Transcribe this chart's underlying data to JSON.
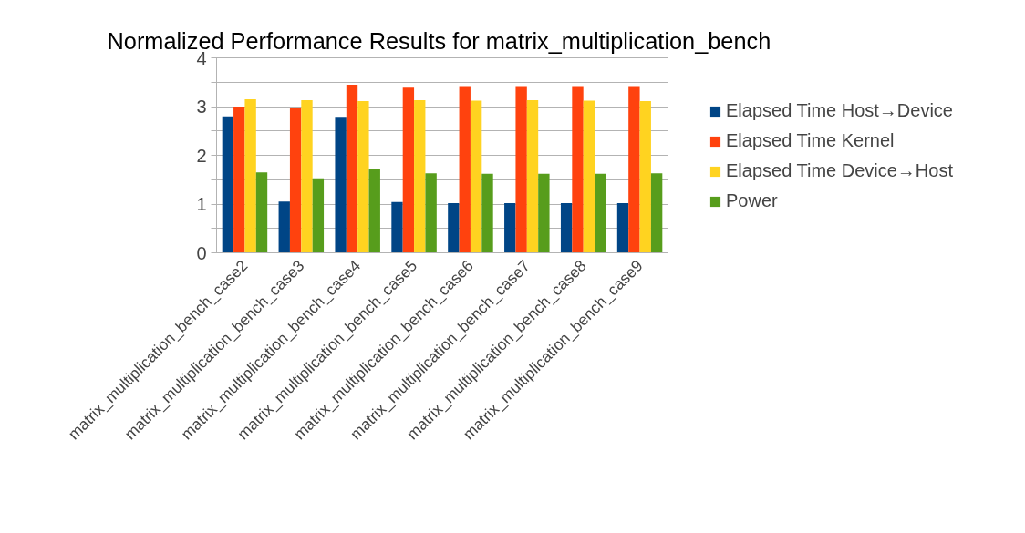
{
  "chart_data": {
    "type": "bar",
    "title": "Normalized Performance Results for matrix_multiplication_bench",
    "categories": [
      "matrix_multiplication_bench_case2",
      "matrix_multiplication_bench_case3",
      "matrix_multiplication_bench_case4",
      "matrix_multiplication_bench_case5",
      "matrix_multiplication_bench_case6",
      "matrix_multiplication_bench_case7",
      "matrix_multiplication_bench_case8",
      "matrix_multiplication_bench_case9"
    ],
    "series": [
      {
        "name": "Elapsed Time Host→Device",
        "color": "#004586",
        "values": [
          2.8,
          1.05,
          2.79,
          1.04,
          1.02,
          1.02,
          1.02,
          1.02
        ]
      },
      {
        "name": "Elapsed Time Kernel",
        "color": "#ff420e",
        "values": [
          3.0,
          2.98,
          3.45,
          3.39,
          3.42,
          3.42,
          3.42,
          3.42
        ]
      },
      {
        "name": "Elapsed Time Device→Host",
        "color": "#ffd320",
        "values": [
          3.15,
          3.13,
          3.11,
          3.13,
          3.12,
          3.13,
          3.12,
          3.11
        ]
      },
      {
        "name": "Power",
        "color": "#579d1c",
        "values": [
          1.65,
          1.53,
          1.72,
          1.63,
          1.62,
          1.62,
          1.62,
          1.63
        ]
      }
    ],
    "ylim": [
      0,
      4
    ],
    "yticks": [
      0,
      {
        "value": 0.5,
        "label": null
      },
      1,
      {
        "value": 1.5,
        "label": null
      },
      2,
      {
        "value": 2.5,
        "label": null
      },
      3,
      {
        "value": 3.5,
        "label": null
      },
      4
    ],
    "grid": "y",
    "legend": "right"
  }
}
